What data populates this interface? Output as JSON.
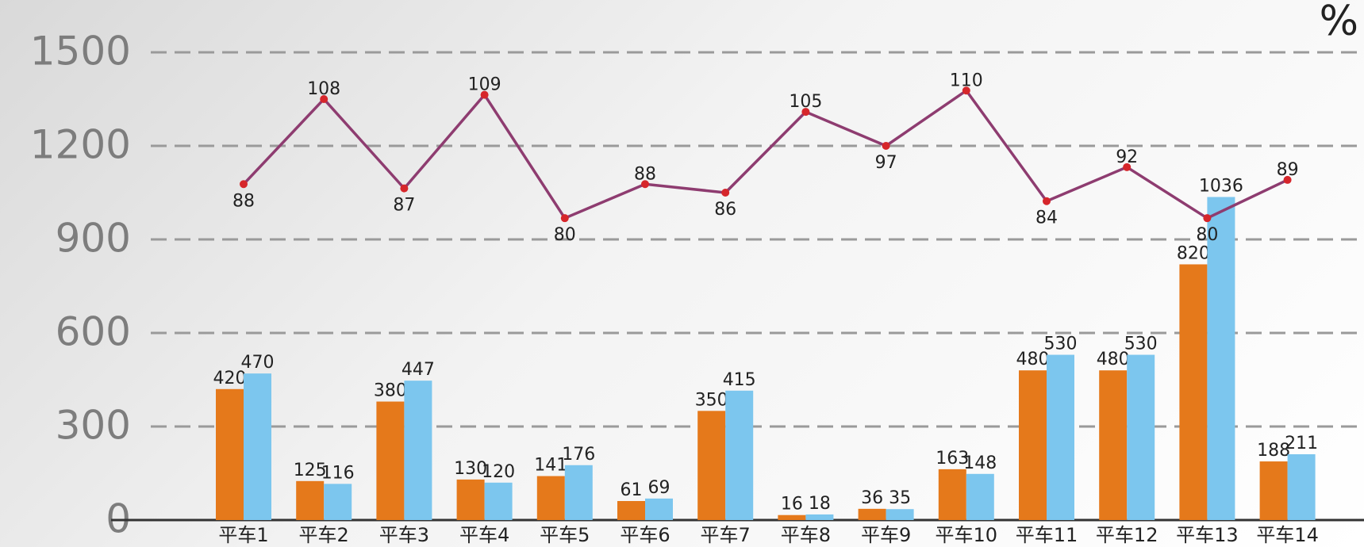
{
  "chart_data": {
    "type": "bar",
    "categories": [
      "平车1",
      "平车2",
      "平车3",
      "平车4",
      "平车5",
      "平车6",
      "平车7",
      "平车8",
      "平车9",
      "平车10",
      "平车11",
      "平车12",
      "平车13",
      "平车14"
    ],
    "series": [
      {
        "color": "#e5791b",
        "values": [
          420,
          125,
          380,
          130,
          141,
          61,
          350,
          16,
          36,
          163,
          480,
          480,
          820,
          188
        ]
      },
      {
        "color": "#7cc6ee",
        "values": [
          470,
          116,
          447,
          120,
          176,
          69,
          415,
          18,
          35,
          148,
          530,
          530,
          1036,
          211
        ]
      },
      {
        "type": "line",
        "axis": "y2",
        "color": "#8e3c70",
        "marker_color": "#d6262b",
        "values": [
          88,
          108,
          87,
          109,
          80,
          88,
          86,
          105,
          97,
          110,
          84,
          92,
          80,
          89
        ]
      }
    ],
    "ylim": [
      0,
      1500
    ],
    "yticks": [
      0,
      300,
      600,
      900,
      1200,
      1500
    ],
    "y2lim": [
      9,
      119
    ],
    "y2label": "%",
    "grid": true
  }
}
